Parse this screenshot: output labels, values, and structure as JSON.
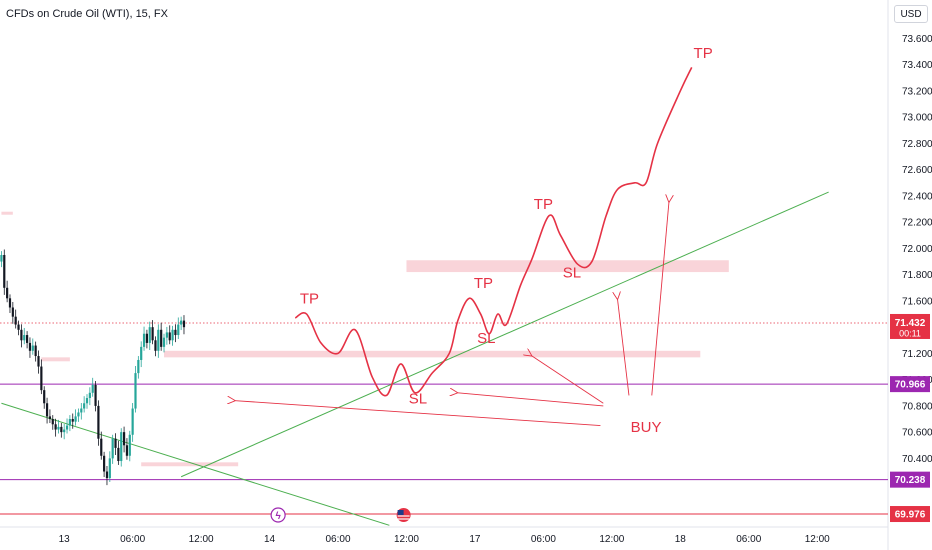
{
  "symbol_title": "CFDs on Crude Oil (WTI), 15, FX",
  "currency": "USD",
  "colors": {
    "bull": "#26a69a",
    "bear": "#131722",
    "annotation_red": "#e53245",
    "trend_green": "#4caf50",
    "level_purple": "#9c27b0",
    "zone_pink": "#f8cdd2"
  },
  "chart_data": {
    "type": "candlestick",
    "title": "CFDs on Crude Oil (WTI), 15, FX",
    "ylabel": "USD",
    "ylim": [
      69.9,
      73.68
    ],
    "y_ticks": [
      70.4,
      70.6,
      70.8,
      71.0,
      71.2,
      71.6,
      71.8,
      72.0,
      72.2,
      72.4,
      72.6,
      72.8,
      73.0,
      73.2,
      73.4,
      73.6
    ],
    "x_ticks": [
      {
        "label": "13",
        "bar": 8
      },
      {
        "label": "06:00",
        "bar": 32
      },
      {
        "label": "12:00",
        "bar": 56
      },
      {
        "label": "14",
        "bar": 80
      },
      {
        "label": "06:00",
        "bar": 104
      },
      {
        "label": "12:00",
        "bar": 128
      },
      {
        "label": "17",
        "bar": 152
      },
      {
        "label": "06:00",
        "bar": 176
      },
      {
        "label": "12:00",
        "bar": 200
      },
      {
        "label": "18",
        "bar": 224
      },
      {
        "label": "06:00",
        "bar": 248
      },
      {
        "label": "12:00",
        "bar": 272
      }
    ],
    "bar_range": [
      -14,
      291
    ],
    "price_close": [
      71.95,
      71.7,
      71.62,
      71.55,
      71.48,
      71.42,
      71.38,
      71.3,
      71.34,
      71.28,
      71.22,
      71.26,
      71.18,
      71.1,
      70.92,
      70.82,
      70.72,
      70.7,
      70.66,
      70.62,
      70.64,
      70.6,
      70.62,
      70.65,
      70.7,
      70.68,
      70.72,
      70.75,
      70.78,
      70.82,
      70.86,
      70.9,
      70.96,
      70.8,
      70.55,
      70.42,
      70.3,
      70.25,
      70.4,
      70.55,
      70.48,
      70.38,
      70.6,
      70.5,
      70.42,
      70.58,
      70.78,
      71.05,
      71.15,
      71.25,
      71.35,
      71.28,
      71.4,
      71.3,
      71.22,
      71.38,
      71.25,
      71.32,
      71.36,
      71.3,
      71.38,
      71.34,
      71.42,
      71.45,
      71.4
    ],
    "annotations": [
      {
        "text": "TP",
        "kind": "take-profit"
      },
      {
        "text": "SL",
        "kind": "stop-loss"
      },
      {
        "text": "TP",
        "kind": "take-profit"
      },
      {
        "text": "SL",
        "kind": "stop-loss"
      },
      {
        "text": "TP",
        "kind": "take-profit"
      },
      {
        "text": "SL",
        "kind": "stop-loss"
      },
      {
        "text": "TP",
        "kind": "take-profit"
      },
      {
        "text": "BUY",
        "kind": "entry"
      }
    ],
    "projection_path": [
      {
        "bar": 89,
        "price": 71.47
      },
      {
        "bar": 93,
        "price": 71.5
      },
      {
        "bar": 98,
        "price": 71.28
      },
      {
        "bar": 104,
        "price": 71.2
      },
      {
        "bar": 110,
        "price": 71.38
      },
      {
        "bar": 116,
        "price": 71.02
      },
      {
        "bar": 121,
        "price": 70.88
      },
      {
        "bar": 126,
        "price": 71.12
      },
      {
        "bar": 131,
        "price": 70.9
      },
      {
        "bar": 137,
        "price": 71.05
      },
      {
        "bar": 143,
        "price": 71.2
      },
      {
        "bar": 146,
        "price": 71.45
      },
      {
        "bar": 150,
        "price": 71.62
      },
      {
        "bar": 154,
        "price": 71.5
      },
      {
        "bar": 157,
        "price": 71.35
      },
      {
        "bar": 160,
        "price": 71.5
      },
      {
        "bar": 163,
        "price": 71.42
      },
      {
        "bar": 168,
        "price": 71.72
      },
      {
        "bar": 172,
        "price": 71.92
      },
      {
        "bar": 178,
        "price": 72.25
      },
      {
        "bar": 182,
        "price": 72.1
      },
      {
        "bar": 188,
        "price": 71.88
      },
      {
        "bar": 193,
        "price": 71.9
      },
      {
        "bar": 198,
        "price": 72.25
      },
      {
        "bar": 202,
        "price": 72.45
      },
      {
        "bar": 208,
        "price": 72.5
      },
      {
        "bar": 212,
        "price": 72.5
      },
      {
        "bar": 216,
        "price": 72.8
      },
      {
        "bar": 224,
        "price": 73.2
      },
      {
        "bar": 228,
        "price": 73.38
      }
    ],
    "zones": [
      {
        "bar_from": 128,
        "bar_to": 241,
        "price_top": 71.91,
        "price_bottom": 71.82
      },
      {
        "bar_from": 43,
        "bar_to": 231,
        "price_top": 71.22,
        "price_bottom": 71.17
      },
      {
        "bar_from": 35,
        "bar_to": 69,
        "price_top": 70.37,
        "price_bottom": 70.34
      },
      {
        "bar_from": 0,
        "bar_to": 10,
        "price_top": 71.17,
        "price_bottom": 71.14
      },
      {
        "bar_from": -14,
        "bar_to": -10,
        "price_top": 72.28,
        "price_bottom": 72.26
      }
    ],
    "trendlines": [
      {
        "from": {
          "bar": 49,
          "price": 70.26
        },
        "to": {
          "bar": 276,
          "price": 72.43
        }
      },
      {
        "from": {
          "bar": -14,
          "price": 70.82
        },
        "to": {
          "bar": 122,
          "price": 69.89
        }
      }
    ],
    "horizontal_levels": [
      {
        "price": 70.966,
        "label": "70.966",
        "color": "#9c27b0"
      },
      {
        "price": 70.238,
        "label": "70.238",
        "color": "#9c27b0"
      },
      {
        "price": 69.976,
        "label": "69.976",
        "color": "#e53245"
      }
    ],
    "last_price": {
      "value": "71.432",
      "countdown": "00:11",
      "price": 71.432
    },
    "event_markers": [
      {
        "name": "lightning-icon",
        "glyph": "ϟ",
        "bar": 83
      },
      {
        "name": "us-flag-icon",
        "glyph": "",
        "bar": 127
      }
    ]
  }
}
